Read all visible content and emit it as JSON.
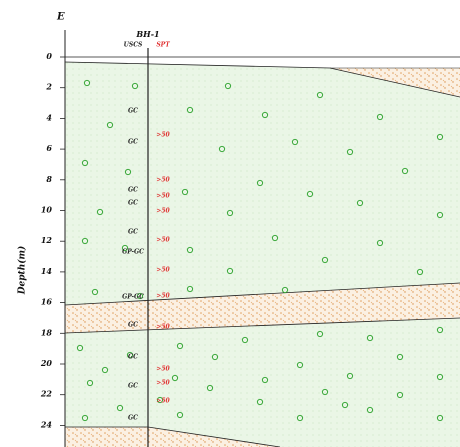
{
  "axis_letter": "E",
  "depth_axis": {
    "label": "Depth(m)",
    "ticks": [
      "0",
      "2",
      "4",
      "6",
      "8",
      "10",
      "12",
      "14",
      "16",
      "18",
      "20",
      "22",
      "24"
    ]
  },
  "borehole": {
    "name": "BH-1",
    "uscs_header": "USCS",
    "spt_header": "SPT",
    "uscs": [
      "GC",
      "GC",
      "GC",
      "GC",
      "GC",
      "GP-GC",
      "GP-GC",
      "GC",
      "GC",
      "GC",
      "GC"
    ],
    "spt": [
      ">50",
      ">50",
      ">50",
      ">50",
      ">50",
      ">50",
      ">50",
      ">50",
      ">50",
      ">50",
      ">50"
    ]
  }
}
